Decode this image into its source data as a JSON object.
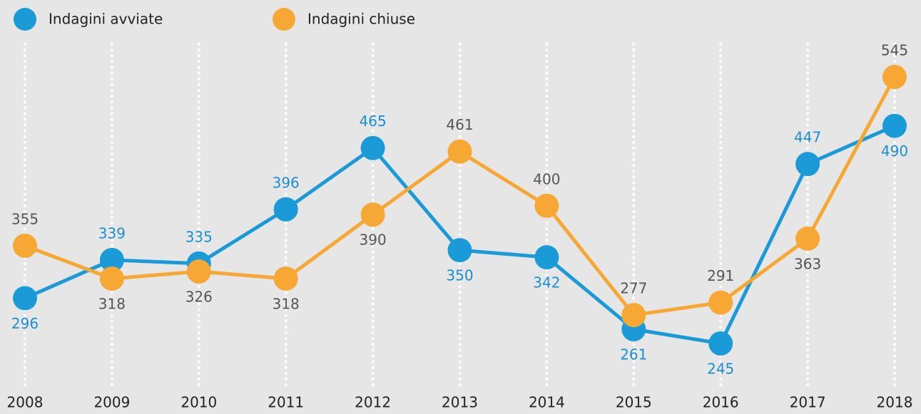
{
  "chart_data": {
    "type": "line",
    "categories": [
      "2008",
      "2009",
      "2010",
      "2011",
      "2012",
      "2013",
      "2014",
      "2015",
      "2016",
      "2017",
      "2018"
    ],
    "series": [
      {
        "name": "Indagini avviate",
        "color": "#1a9ad6",
        "values": [
          296,
          339,
          335,
          396,
          465,
          350,
          342,
          261,
          245,
          447,
          490
        ]
      },
      {
        "name": "Indagini chiuse",
        "color": "#f7a733",
        "values": [
          355,
          318,
          326,
          318,
          390,
          461,
          400,
          277,
          291,
          363,
          545
        ]
      }
    ],
    "grid": true,
    "legend": "top"
  }
}
